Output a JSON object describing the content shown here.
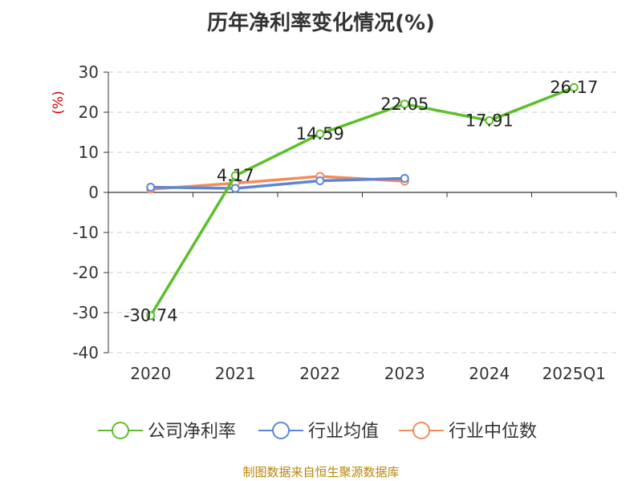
{
  "title": "历年净利率变化情况(%)",
  "source": "制图数据来自恒生聚源数据库",
  "chart_data": {
    "type": "line",
    "title": "历年净利率变化情况(%)",
    "ylabel": "(%)",
    "xlabel": "",
    "categories": [
      "2020",
      "2021",
      "2022",
      "2023",
      "2024",
      "2025Q1"
    ],
    "ylim": [
      -40,
      30
    ],
    "yticks": [
      30,
      20,
      10,
      0,
      -10,
      -20,
      -30,
      -40
    ],
    "grid": true,
    "legend_position": "bottom",
    "series": [
      {
        "name": "公司净利率",
        "color": "#5cbf2a",
        "values": [
          -30.74,
          4.17,
          14.59,
          22.05,
          17.91,
          26.17
        ],
        "show_labels": true
      },
      {
        "name": "行业均值",
        "color": "#5b86d9",
        "values": [
          1.3,
          1.0,
          2.9,
          3.5,
          null,
          null
        ],
        "show_labels": false
      },
      {
        "name": "行业中位数",
        "color": "#f28c5c",
        "values": [
          0.8,
          2.3,
          4.0,
          2.8,
          null,
          null
        ],
        "show_labels": false
      }
    ],
    "data_labels": [
      "-30.74",
      "4.17",
      "14.59",
      "22.05",
      "17.91",
      "26.17"
    ]
  }
}
